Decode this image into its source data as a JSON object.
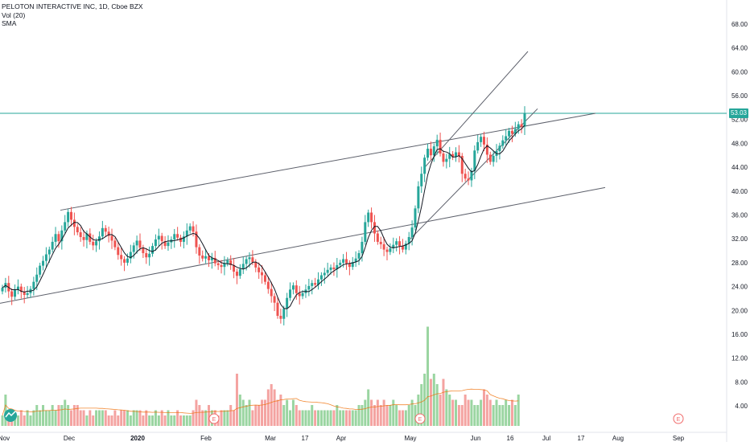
{
  "legend": {
    "title": "PELOTON INTERACTIVE INC, 1D, Cboe BZX",
    "volume": "Vol (20)",
    "sma": "SMA"
  },
  "last_price_label": "53.03",
  "colors": {
    "up": "#26a69a",
    "down": "#ef5350",
    "volume_up": "#9ad5a1",
    "volume_down": "#f4a3a1",
    "sma": "#131722",
    "vol_ma": "#ef6c00",
    "price_line": "#26a69a",
    "trendline": "#5d606b",
    "earnings": "#f06b6b"
  },
  "chart_data": {
    "type": "candlestick",
    "y_axis": {
      "min": 2,
      "max": 70,
      "tick_labels": [
        "4.00",
        "8.00",
        "12.00",
        "16.00",
        "20.00",
        "24.00",
        "28.00",
        "32.00",
        "36.00",
        "40.00",
        "44.00",
        "48.00",
        "52.00",
        "56.00",
        "60.00",
        "64.00",
        "68.00"
      ],
      "side": "right"
    },
    "x_axis": {
      "tick_labels": [
        "Nov",
        "Dec",
        "2020",
        "Feb",
        "Mar",
        "17",
        "Apr",
        "May",
        "Jun",
        "16",
        "Jul",
        "17",
        "Aug",
        "Sep"
      ]
    },
    "ohlc_close": [
      23.8,
      24.6,
      23.2,
      22.3,
      23.5,
      24.0,
      23.1,
      22.6,
      22.9,
      23.6,
      24.8,
      26.0,
      27.5,
      28.3,
      29.4,
      30.2,
      31.5,
      32.8,
      31.6,
      33.4,
      34.8,
      36.5,
      35.2,
      34.0,
      33.1,
      32.3,
      31.8,
      32.9,
      31.5,
      30.9,
      31.6,
      32.4,
      33.8,
      33.2,
      32.5,
      31.7,
      30.6,
      29.3,
      28.6,
      28.0,
      28.7,
      29.8,
      30.9,
      31.7,
      30.5,
      29.6,
      28.9,
      29.5,
      30.8,
      31.9,
      32.5,
      31.6,
      30.8,
      31.4,
      31.9,
      32.8,
      32.2,
      31.5,
      32.4,
      33.4,
      34.1,
      33.2,
      30.6,
      29.2,
      28.7,
      29.1,
      28.4,
      28.8,
      27.9,
      27.6,
      27.3,
      27.9,
      28.4,
      27.6,
      26.5,
      25.8,
      26.9,
      27.8,
      28.6,
      28.9,
      28.1,
      27.2,
      26.4,
      25.9,
      24.8,
      23.6,
      22.4,
      21.3,
      19.1,
      18.6,
      20.3,
      22.1,
      23.5,
      24.2,
      22.9,
      22.4,
      22.9,
      23.5,
      24.1,
      24.6,
      24.3,
      25.2,
      25.9,
      26.3,
      26.8,
      27.2,
      26.9,
      27.6,
      28.0,
      28.6,
      27.9,
      27.3,
      28.1,
      28.7,
      29.6,
      31.5,
      34.8,
      36.4,
      34.8,
      32.9,
      31.5,
      31.1,
      30.2,
      29.8,
      30.4,
      31.0,
      31.6,
      30.8,
      30.2,
      31.2,
      32.3,
      33.9,
      37.1,
      40.8,
      42.9,
      45.6,
      47.1,
      46.0,
      47.5,
      48.6,
      46.3,
      44.9,
      45.4,
      46.2,
      45.7,
      46.5,
      45.9,
      42.9,
      42.1,
      41.8,
      43.4,
      46.8,
      48.2,
      49.1,
      47.8,
      46.1,
      44.9,
      45.9,
      46.7,
      47.6,
      48.5,
      49.2,
      50.1,
      49.6,
      50.4,
      51.2,
      50.8,
      53.03
    ],
    "ohlc_open": [
      23.2,
      23.8,
      24.6,
      23.2,
      22.3,
      23.5,
      24.0,
      23.1,
      22.6,
      22.9,
      23.6,
      24.8,
      26.0,
      27.5,
      28.3,
      29.4,
      30.2,
      31.5,
      32.8,
      31.6,
      33.4,
      34.8,
      36.5,
      35.2,
      34.0,
      33.1,
      32.3,
      31.8,
      32.9,
      31.5,
      30.9,
      31.6,
      32.4,
      33.8,
      33.2,
      32.5,
      31.7,
      30.6,
      29.3,
      28.6,
      28.0,
      28.7,
      29.8,
      30.9,
      31.7,
      30.5,
      29.6,
      28.9,
      29.5,
      30.8,
      31.9,
      32.5,
      31.6,
      30.8,
      31.4,
      31.9,
      32.8,
      32.2,
      31.5,
      32.4,
      33.4,
      34.1,
      33.2,
      30.6,
      29.2,
      28.7,
      29.1,
      28.4,
      28.8,
      27.9,
      27.6,
      27.3,
      27.9,
      28.4,
      27.6,
      26.5,
      25.8,
      26.9,
      27.8,
      28.6,
      28.9,
      28.1,
      27.2,
      26.4,
      25.9,
      24.8,
      23.6,
      22.4,
      21.3,
      19.1,
      18.6,
      20.3,
      22.1,
      23.5,
      24.2,
      22.9,
      22.4,
      22.9,
      23.5,
      24.1,
      24.6,
      24.3,
      25.2,
      25.9,
      26.3,
      26.8,
      27.2,
      26.9,
      27.6,
      28.0,
      28.6,
      27.9,
      27.3,
      28.1,
      28.7,
      29.6,
      31.5,
      34.8,
      36.4,
      34.8,
      32.9,
      31.5,
      31.1,
      30.2,
      29.8,
      30.4,
      31.0,
      31.6,
      30.8,
      30.2,
      31.2,
      32.3,
      33.9,
      37.1,
      40.8,
      42.9,
      45.6,
      47.1,
      46.0,
      47.5,
      48.6,
      46.3,
      44.9,
      45.4,
      46.2,
      45.7,
      46.5,
      45.9,
      42.9,
      42.1,
      41.8,
      43.4,
      46.8,
      48.2,
      49.1,
      47.8,
      46.1,
      44.9,
      45.9,
      46.7,
      47.6,
      48.5,
      49.2,
      50.1,
      49.6,
      50.4,
      51.2,
      50.8
    ],
    "volume": [
      2,
      6,
      2,
      3,
      2,
      2,
      3,
      2,
      3,
      2,
      3,
      4,
      3,
      4,
      3,
      3,
      4,
      3,
      4,
      4,
      5,
      4,
      3,
      4,
      4,
      3,
      3,
      2,
      3,
      2,
      3,
      3,
      3,
      3,
      2,
      2,
      3,
      2,
      3,
      3,
      3,
      2,
      3,
      3,
      3,
      2,
      3,
      2,
      2,
      3,
      2,
      3,
      2,
      3,
      2,
      2,
      3,
      2,
      2,
      2,
      2,
      3,
      5,
      4,
      3,
      3,
      4,
      3,
      3,
      2,
      3,
      3,
      3,
      4,
      3,
      10,
      6,
      5,
      4,
      5,
      3,
      4,
      4,
      5,
      5,
      7,
      8,
      7,
      5,
      6,
      4,
      5,
      3,
      5,
      4,
      3,
      3,
      3,
      3,
      4,
      3,
      3,
      3,
      3,
      3,
      3,
      3,
      4,
      3,
      3,
      3,
      3,
      3,
      3,
      4,
      4,
      5,
      7,
      5,
      4,
      5,
      4,
      5,
      4,
      4,
      5,
      4,
      3,
      3,
      3,
      4,
      5,
      4,
      6,
      8,
      10,
      19,
      9,
      10,
      8,
      6,
      9,
      7,
      6,
      5,
      5,
      4,
      4,
      6,
      5,
      5,
      4,
      4,
      5,
      7,
      6,
      5,
      4,
      5,
      4,
      4,
      5,
      4,
      5,
      4,
      6
    ]
  },
  "trendlines": {
    "channel_upper": [
      [
        75,
        36.8
      ],
      [
        740,
        53.03
      ]
    ],
    "channel_lower": [
      [
        0,
        21.2
      ],
      [
        752,
        40.6
      ]
    ],
    "rising_upper": [
      [
        528,
        44.0
      ],
      [
        656,
        63.4
      ]
    ],
    "rising_lower": [
      [
        510,
        32.0
      ],
      [
        668,
        53.8
      ]
    ]
  },
  "earnings_markers": [
    "E",
    "E",
    "E"
  ]
}
